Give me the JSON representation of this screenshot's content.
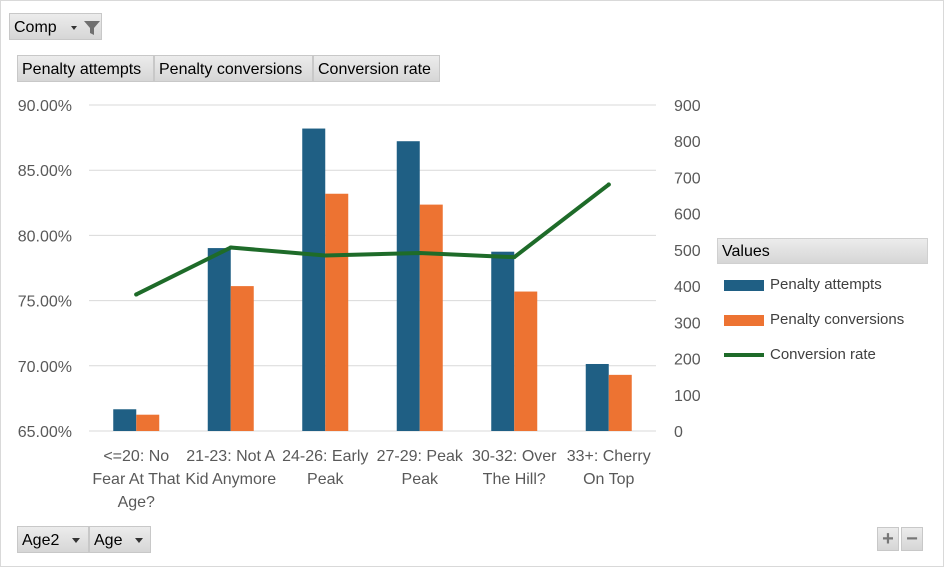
{
  "filter_button": {
    "label": "Comp"
  },
  "value_buttons": [
    {
      "label": "Penalty attempts"
    },
    {
      "label": "Penalty conversions"
    },
    {
      "label": "Conversion rate"
    }
  ],
  "axis_buttons": [
    {
      "label": "Age2"
    },
    {
      "label": "Age"
    }
  ],
  "legend": {
    "title": "Values",
    "entries": [
      "Penalty attempts",
      "Penalty conversions",
      "Conversion rate"
    ]
  },
  "zoom": {
    "plus": "+",
    "minus": "−"
  },
  "colors": {
    "attempts": "#1F5F84",
    "conversions": "#ED7332",
    "rate": "#1E6B29"
  },
  "chart_data": {
    "type": "bar",
    "categories": [
      [
        "<=20: No",
        "Fear At That",
        "Age?"
      ],
      [
        "21-23: Not A",
        "Kid Anymore"
      ],
      [
        "24-26: Early",
        "Peak"
      ],
      [
        "27-29: Peak",
        "Peak"
      ],
      [
        "30-32: Over",
        "The Hill?"
      ],
      [
        "33+: Cherry",
        "On Top"
      ]
    ],
    "series": [
      {
        "name": "Penalty attempts",
        "axis": "right",
        "type": "bar",
        "values": [
          60,
          505,
          835,
          800,
          495,
          185
        ]
      },
      {
        "name": "Penalty conversions",
        "axis": "right",
        "type": "bar",
        "values": [
          45,
          400,
          655,
          625,
          385,
          155
        ]
      },
      {
        "name": "Conversion rate",
        "axis": "left",
        "type": "line",
        "values": [
          0.7547,
          0.7907,
          0.7846,
          0.7865,
          0.7833,
          0.839
        ]
      }
    ],
    "y_left": {
      "min": 0.65,
      "max": 0.9,
      "ticks": [
        "65.00%",
        "70.00%",
        "75.00%",
        "80.00%",
        "85.00%",
        "90.00%"
      ]
    },
    "y_right": {
      "min": 0,
      "max": 900,
      "ticks": [
        "0",
        "100",
        "200",
        "300",
        "400",
        "500",
        "600",
        "700",
        "800",
        "900"
      ]
    },
    "grid": true,
    "legend_position": "right"
  }
}
